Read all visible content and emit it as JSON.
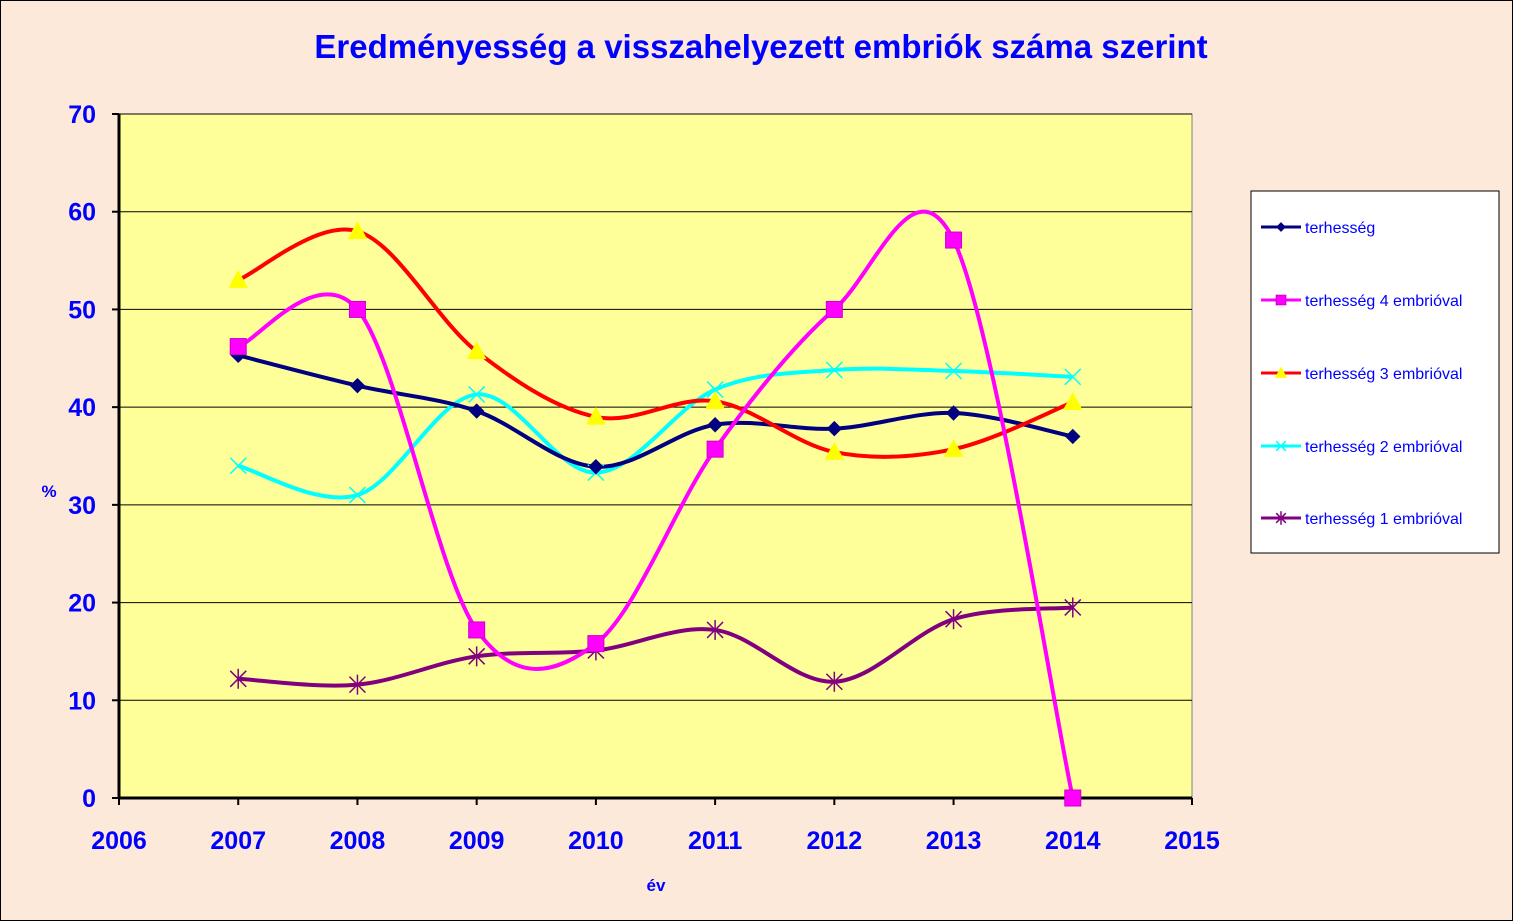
{
  "chart_data": {
    "type": "line",
    "title": "Eredményesség a visszahelyezett embriók száma szerint",
    "xlabel": "év",
    "ylabel": "%",
    "xlim": [
      2006,
      2015
    ],
    "ylim": [
      0,
      70
    ],
    "x_ticks": [
      "2006",
      "2007",
      "2008",
      "2009",
      "2010",
      "2011",
      "2012",
      "2013",
      "2014",
      "2015"
    ],
    "y_ticks": [
      "0",
      "10",
      "20",
      "30",
      "40",
      "50",
      "60",
      "70"
    ],
    "x": [
      2007,
      2008,
      2009,
      2010,
      2011,
      2012,
      2013,
      2014
    ],
    "grid": "horizontal",
    "smooth": true,
    "legend_position": "right",
    "plot_background": "#ffff99",
    "chart_background": "#fde9d9",
    "series": [
      {
        "name": "terhesség",
        "color": "#000080",
        "marker": "diamond",
        "values": [
          45.3,
          42.2,
          39.6,
          33.9,
          38.2,
          37.8,
          39.4,
          37.0
        ]
      },
      {
        "name": "terhesség 4 embrióval",
        "color": "#ff00ff",
        "marker": "square",
        "values": [
          46.2,
          50.0,
          17.2,
          15.8,
          35.7,
          50.0,
          57.1,
          0.0
        ]
      },
      {
        "name": "terhesség 3 embrióval",
        "color": "#ff0000",
        "marker": "triangle",
        "marker_color": "#ffff00",
        "values": [
          53.0,
          58.0,
          45.7,
          39.0,
          40.6,
          35.4,
          35.7,
          40.5
        ]
      },
      {
        "name": "terhesség 2 embrióval",
        "color": "#00ffff",
        "marker": "x",
        "values": [
          34.0,
          31.0,
          41.3,
          33.3,
          41.8,
          43.8,
          43.7,
          43.1
        ]
      },
      {
        "name": "terhesség 1 embrióval",
        "color": "#800080",
        "marker": "star",
        "values": [
          12.2,
          11.6,
          14.5,
          15.1,
          17.2,
          11.9,
          18.3,
          19.5
        ]
      }
    ]
  }
}
